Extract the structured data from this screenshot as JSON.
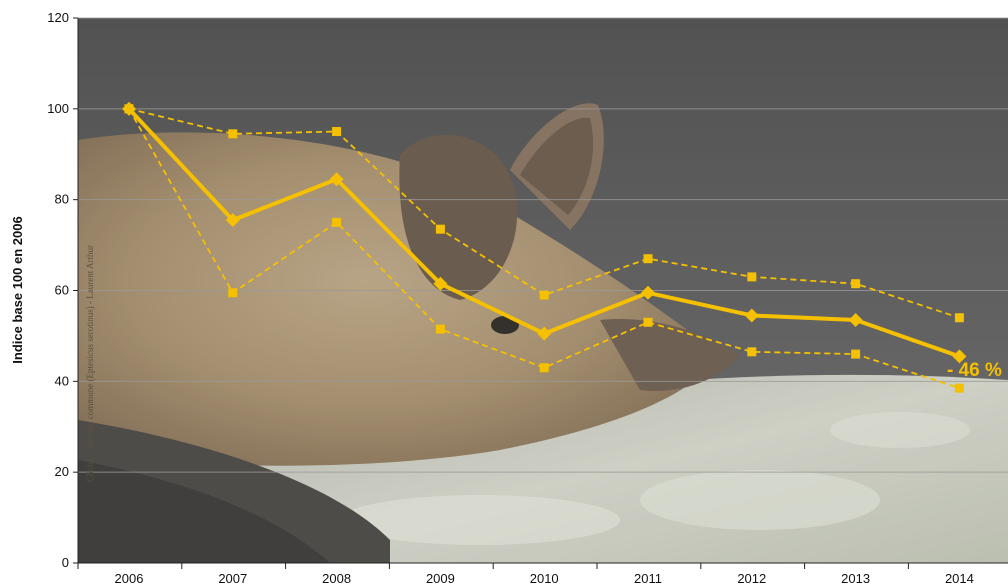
{
  "chart_data": {
    "type": "line",
    "title": "",
    "xlabel": "",
    "ylabel": "Indice base 100 en 2006",
    "ylim": [
      0,
      120
    ],
    "y_ticks": [
      0,
      20,
      40,
      60,
      80,
      100,
      120
    ],
    "categories": [
      "2006",
      "2007",
      "2008",
      "2009",
      "2010",
      "2011",
      "2012",
      "2013",
      "2014"
    ],
    "grid": true,
    "series": [
      {
        "values": [
          100,
          75.5,
          84.5,
          61.5,
          50.5,
          59.5,
          54.5,
          53.5,
          45.5
        ],
        "style": "solid",
        "marker": "diamond"
      },
      {
        "values": [
          100,
          94.5,
          95,
          73.5,
          59,
          67,
          63,
          61.5,
          54
        ],
        "style": "dashed",
        "marker": "square"
      },
      {
        "values": [
          100,
          59.5,
          75,
          51.5,
          43,
          53,
          46.5,
          46,
          38.5
        ],
        "style": "dashed",
        "marker": "square"
      }
    ],
    "annotation": {
      "text": "- 46 %"
    },
    "photo_credit": "Cliché : Sérotine commune (Eptesicus serotinus) - Laurent Arthur",
    "colors": {
      "line": "#f5c000",
      "plot_background": "#4e4e4e",
      "grid": "#9a9a9a"
    }
  }
}
